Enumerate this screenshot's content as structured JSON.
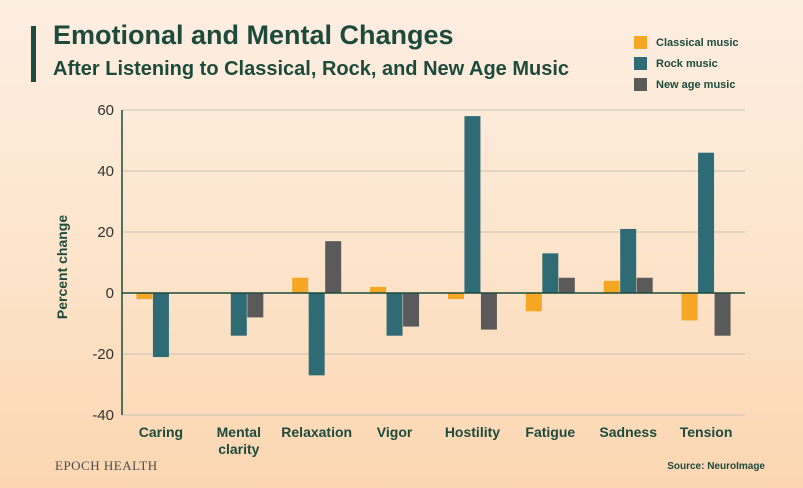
{
  "chart_data": {
    "type": "bar",
    "title": "Emotional and Mental Changes",
    "subtitle": "After Listening to Classical, Rock, and New Age Music",
    "xlabel": "",
    "ylabel": "Percent change",
    "ylim": [
      -40,
      60
    ],
    "yticks": [
      60,
      40,
      20,
      0,
      -20,
      -40
    ],
    "categories": [
      [
        "Caring"
      ],
      [
        "Mental",
        "clarity"
      ],
      [
        "Relaxation"
      ],
      [
        "Vigor"
      ],
      [
        "Hostility"
      ],
      [
        "Fatigue"
      ],
      [
        "Sadness"
      ],
      [
        "Tension"
      ]
    ],
    "series": [
      {
        "name": "Classical music",
        "color": "#f5a623",
        "values": [
          -2,
          0,
          5,
          2,
          -2,
          -6,
          4,
          -9
        ]
      },
      {
        "name": "Rock music",
        "color": "#2f6b74",
        "values": [
          -21,
          -14,
          -27,
          -14,
          58,
          13,
          21,
          46
        ]
      },
      {
        "name": "New age music",
        "color": "#5a5a5a",
        "values": [
          0,
          -8,
          17,
          -11,
          -12,
          5,
          5,
          -14
        ]
      }
    ],
    "grid": true,
    "legend": "top-right"
  },
  "footer": {
    "brand": "EPOCH HEALTH",
    "source": "Source: NeuroImage"
  },
  "colors": {
    "title": "#1d4a3c",
    "grid": "#c9c2b4",
    "axis": "#1d4a3c"
  }
}
